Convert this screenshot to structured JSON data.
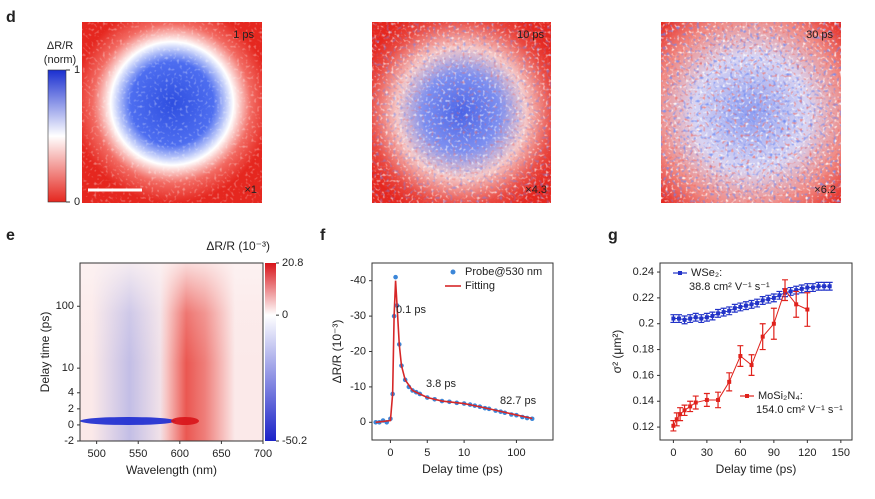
{
  "images_panel": {
    "label": "d",
    "colorbar_title": "ΔR/R",
    "colorbar_unit": "(norm)",
    "colorbar_ticks": [
      1,
      0
    ],
    "images": [
      {
        "time": "1 ps",
        "scale": "×1"
      },
      {
        "time": "10 ps",
        "scale": "×4.3"
      },
      {
        "time": "30 ps",
        "scale": "×6.2"
      }
    ]
  },
  "chart_data": [
    {
      "type": "heatmap",
      "label": "e",
      "xlabel": "Wavelength (nm)",
      "ylabel": "Delay time (ps)",
      "colorbar_label": "ΔR/R (10⁻³)",
      "xlim": [
        480,
        700
      ],
      "xticks": [
        500,
        550,
        600,
        650,
        700
      ],
      "ylim": [
        -2,
        500
      ],
      "yscale": "linlog",
      "ylinthresh": 4,
      "yticks": [
        -2,
        0,
        2,
        4,
        10,
        100
      ],
      "clim": [
        -50.2,
        20.8
      ],
      "cticks": [
        20.8,
        0,
        -50.2
      ]
    },
    {
      "type": "scatter",
      "label": "f",
      "xlabel": "Delay time (ps)",
      "ylabel": "ΔR/R (10⁻³)",
      "xlim": [
        -2.5,
        500
      ],
      "xscale": "linlog",
      "xlinthresh": 10,
      "xticks": [
        0,
        5,
        10,
        100
      ],
      "ylim": [
        5,
        -45
      ],
      "yticks": [
        -40,
        -30,
        -20,
        -10,
        0
      ],
      "legend": "upper right",
      "annotations": [
        "0.1 ps",
        "3.8 ps",
        "82.7 ps"
      ],
      "series": [
        {
          "name": "Probe@530 nm",
          "color": "#3b86d8",
          "mode": "markers",
          "x": [
            -2,
            -1.5,
            -1,
            -0.5,
            0,
            0.3,
            0.5,
            0.7,
            0.9,
            1.2,
            1.5,
            2,
            2.5,
            3,
            3.5,
            4,
            5,
            6,
            7,
            8,
            9,
            10,
            13,
            16,
            20,
            25,
            30,
            40,
            50,
            60,
            80,
            100,
            130,
            160,
            200
          ],
          "values": [
            0,
            0,
            -0.5,
            0,
            -1,
            -8,
            -30,
            -41,
            -33,
            -22,
            -16,
            -12,
            -10,
            -9,
            -8.5,
            -8,
            -7,
            -6.5,
            -6,
            -5.8,
            -5.5,
            -5.3,
            -5,
            -4.7,
            -4.4,
            -4,
            -3.8,
            -3.3,
            -3,
            -2.7,
            -2.2,
            -2,
            -1.5,
            -1.2,
            -1
          ]
        },
        {
          "name": "Fitting",
          "color": "#d62728",
          "mode": "line",
          "x": [
            -2,
            0,
            0.3,
            0.5,
            0.7,
            0.9,
            1.2,
            1.5,
            2,
            3,
            4,
            5,
            7,
            10,
            20,
            40,
            80,
            150,
            200
          ],
          "values": [
            0,
            -0.5,
            -8,
            -30,
            -40,
            -33,
            -22,
            -16,
            -12,
            -9,
            -8,
            -7,
            -6,
            -5.3,
            -4.4,
            -3.4,
            -2.4,
            -1.5,
            -1.1
          ]
        }
      ]
    },
    {
      "type": "errorbar",
      "label": "g",
      "xlabel": "Delay time (ps)",
      "ylabel": "σ² (μm²)",
      "xlim": [
        -12,
        160
      ],
      "xticks": [
        0,
        30,
        60,
        90,
        120,
        150
      ],
      "ylim": [
        0.11,
        0.247
      ],
      "yticks": [
        0.12,
        0.14,
        0.16,
        0.18,
        0.2,
        0.22,
        0.24
      ],
      "series": [
        {
          "name": "WSe₂:",
          "mobility": "38.8 cm² V⁻¹ s⁻¹",
          "color": "#2233c8",
          "x": [
            0,
            5,
            10,
            15,
            20,
            25,
            30,
            35,
            40,
            45,
            50,
            55,
            60,
            65,
            70,
            75,
            80,
            85,
            90,
            95,
            100,
            105,
            110,
            115,
            120,
            125,
            130,
            135,
            140
          ],
          "values": [
            0.204,
            0.204,
            0.203,
            0.204,
            0.205,
            0.204,
            0.205,
            0.206,
            0.208,
            0.209,
            0.21,
            0.212,
            0.213,
            0.214,
            0.215,
            0.216,
            0.218,
            0.219,
            0.22,
            0.222,
            0.224,
            0.225,
            0.226,
            0.227,
            0.228,
            0.228,
            0.229,
            0.229,
            0.229
          ],
          "errors": [
            0.003,
            0.003,
            0.003,
            0.003,
            0.003,
            0.003,
            0.003,
            0.003,
            0.003,
            0.003,
            0.003,
            0.003,
            0.003,
            0.003,
            0.003,
            0.003,
            0.003,
            0.003,
            0.003,
            0.003,
            0.003,
            0.003,
            0.003,
            0.003,
            0.003,
            0.003,
            0.003,
            0.003,
            0.003
          ]
        },
        {
          "name": "MoSi₂N₄:",
          "mobility": "154.0 cm² V⁻¹ s⁻¹",
          "color": "#e0221c",
          "x": [
            0,
            3,
            6,
            10,
            15,
            20,
            30,
            40,
            50,
            60,
            70,
            80,
            90,
            100,
            110,
            120
          ],
          "values": [
            0.121,
            0.126,
            0.13,
            0.133,
            0.136,
            0.139,
            0.141,
            0.141,
            0.155,
            0.175,
            0.168,
            0.19,
            0.2,
            0.226,
            0.215,
            0.211
          ],
          "errors": [
            0.004,
            0.005,
            0.005,
            0.004,
            0.004,
            0.005,
            0.005,
            0.006,
            0.007,
            0.008,
            0.008,
            0.01,
            0.012,
            0.008,
            0.01,
            0.013
          ]
        }
      ]
    }
  ]
}
